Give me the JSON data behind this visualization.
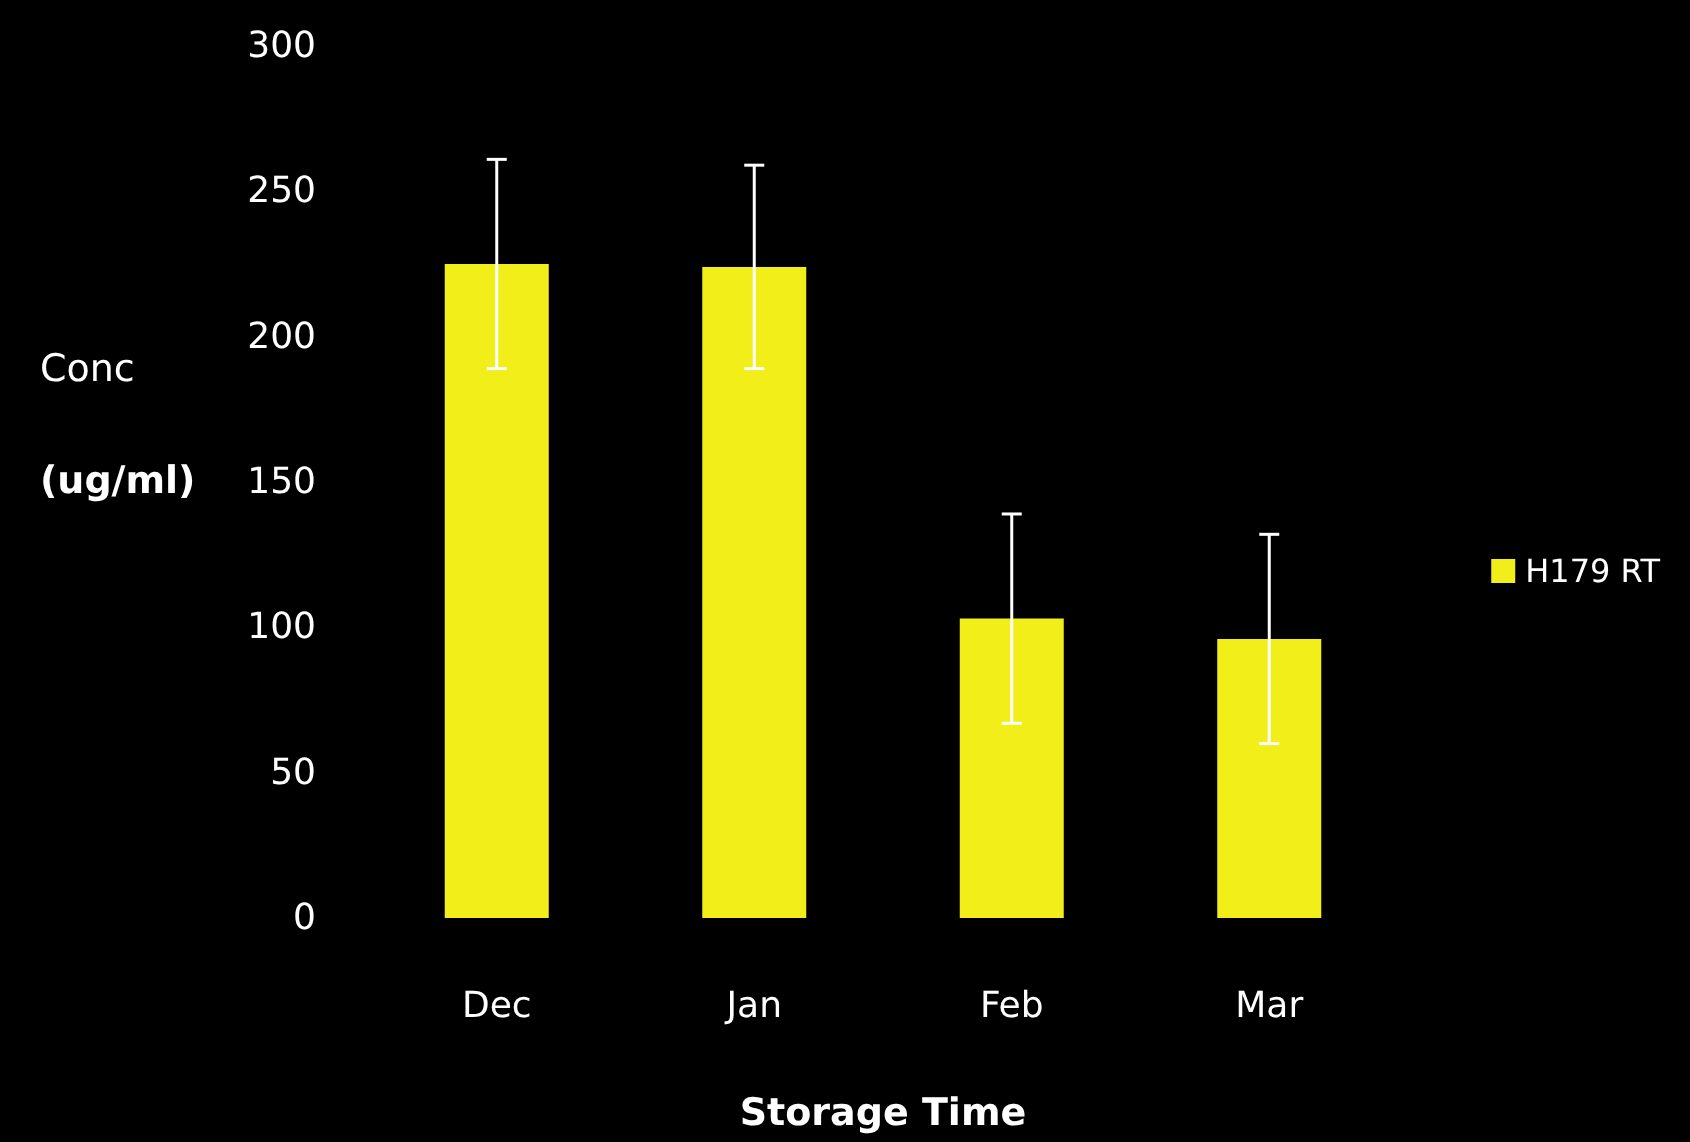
{
  "chart_data": {
    "type": "bar",
    "xlabel": "Storage Time",
    "ylabel": "Conc\n(ug/ml)",
    "categories": [
      "Dec",
      "Jan",
      "Feb",
      "Mar"
    ],
    "series": [
      {
        "name": "H179 RT",
        "color": "#f2ee1a",
        "values": [
          225,
          224,
          103,
          96
        ],
        "errors": [
          36,
          35,
          36,
          36
        ]
      }
    ],
    "ylim": [
      0,
      300
    ],
    "yticks": [
      0,
      50,
      100,
      150,
      200,
      250,
      300
    ],
    "grid": false,
    "legend": "right"
  }
}
